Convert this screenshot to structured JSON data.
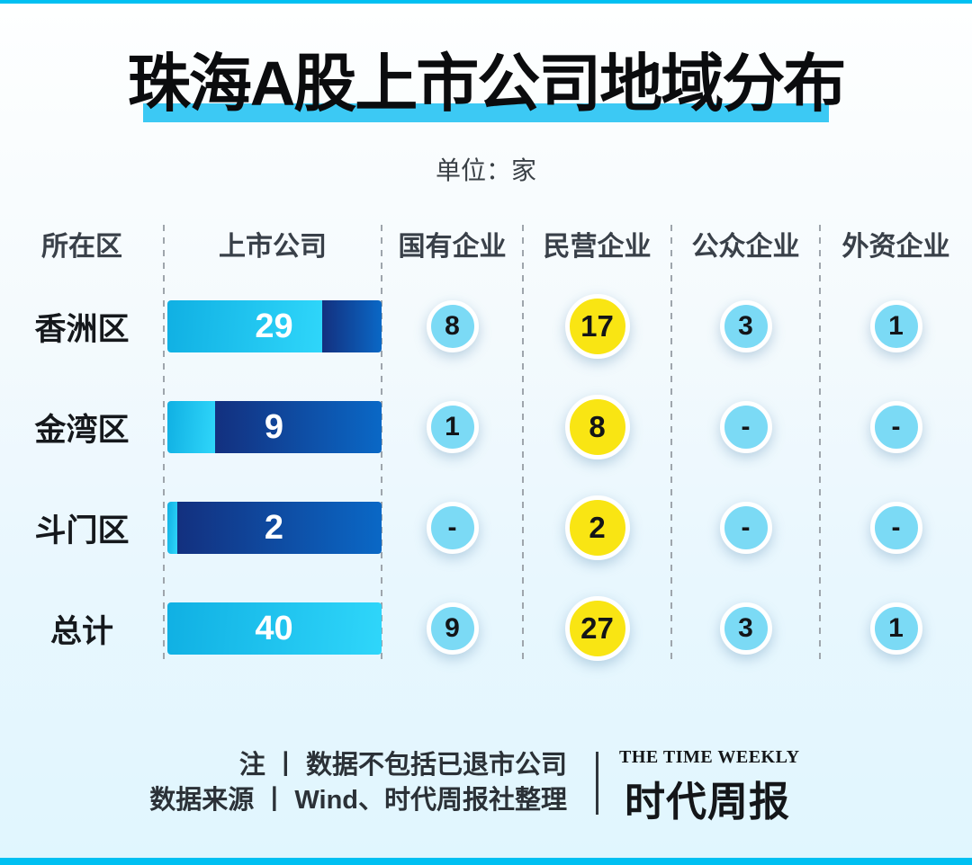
{
  "title": "珠海A股上市公司地域分布",
  "subtitle": "单位：家",
  "table": {
    "max_listed": 40,
    "headers": [
      "所在区",
      "上市公司",
      "国有企业",
      "民营企业",
      "公众企业",
      "外资企业"
    ],
    "rows": [
      {
        "label": "香洲区",
        "listed_text": "29",
        "listed": 29,
        "state_owned": "8",
        "private": "17",
        "public": "3",
        "foreign": "1"
      },
      {
        "label": "金湾区",
        "listed_text": "9",
        "listed": 9,
        "state_owned": "1",
        "private": "8",
        "public": "-",
        "foreign": "-"
      },
      {
        "label": "斗门区",
        "listed_text": "2",
        "listed": 2,
        "state_owned": "-",
        "private": "2",
        "public": "-",
        "foreign": "-"
      },
      {
        "label": "总计",
        "listed_text": "40",
        "listed": 40,
        "state_owned": "9",
        "private": "27",
        "public": "3",
        "foreign": "1"
      }
    ]
  },
  "footer": {
    "note": "注 丨 数据不包括已退市公司",
    "source": "数据来源 丨 Wind、时代周报社整理",
    "logo_en": "THE TIME WEEKLY",
    "logo_cn": "时代周报"
  },
  "colors": {
    "edge_strip": "#00c0f2",
    "title_highlight": "#3cc9f4",
    "bar_light_start": "#10b0e3",
    "bar_light_end": "#2fd6fa",
    "bar_dark_start": "#13307f",
    "bar_dark_end": "#0a68c6",
    "circle_blue": "#7bdaf5",
    "circle_yellow": "#f9e513"
  },
  "chart_data": {
    "type": "table",
    "title": "珠海A股上市公司地域分布",
    "unit": "家",
    "columns": [
      "所在区",
      "上市公司",
      "国有企业",
      "民营企业",
      "公众企业",
      "外资企业"
    ],
    "rows": [
      [
        "香洲区",
        29,
        8,
        17,
        3,
        1
      ],
      [
        "金湾区",
        9,
        1,
        8,
        "-",
        "-"
      ],
      [
        "斗门区",
        2,
        "-",
        2,
        "-",
        "-"
      ],
      [
        "总计",
        40,
        9,
        27,
        3,
        1
      ]
    ],
    "bar_series": {
      "name": "上市公司",
      "values": [
        29,
        9,
        2,
        40
      ],
      "scale_max": 40
    },
    "legend_position": "none",
    "grid": "dashed-column-dividers"
  }
}
